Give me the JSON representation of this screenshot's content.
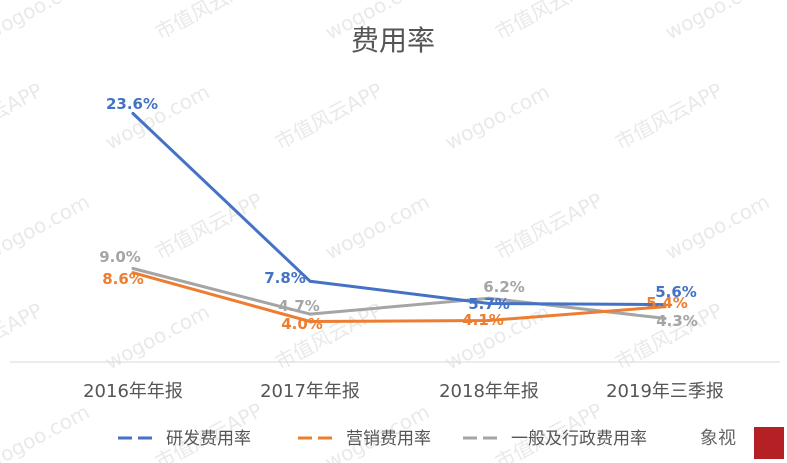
{
  "chart_data": {
    "type": "line",
    "title": "费用率",
    "categories": [
      "2016年年报",
      "2017年年报",
      "2018年年报",
      "2019年三季报"
    ],
    "ylim": [
      0,
      26
    ],
    "grid": false,
    "legend_position": "bottom",
    "series": [
      {
        "name": "研发费用率",
        "color": "#4472c4",
        "values": [
          23.6,
          7.8,
          5.7,
          5.6
        ],
        "labels": [
          "23.6%",
          "7.8%",
          "5.7%",
          "5.6%"
        ]
      },
      {
        "name": "营销费用率",
        "color": "#ed7d31",
        "values": [
          8.6,
          4.0,
          4.1,
          5.4
        ],
        "labels": [
          "8.6%",
          "4.0%",
          "4.1%",
          "5.4%"
        ]
      },
      {
        "name": "一般及行政费用率",
        "color": "#a5a5a5",
        "values": [
          9.0,
          4.7,
          6.2,
          4.3
        ],
        "labels": [
          "9.0%",
          "4.7%",
          "6.2%",
          "4.3%"
        ]
      }
    ]
  },
  "watermarks": [
    "wogoo.com",
    "市值风云APP"
  ],
  "brand_logo_text": "象视"
}
